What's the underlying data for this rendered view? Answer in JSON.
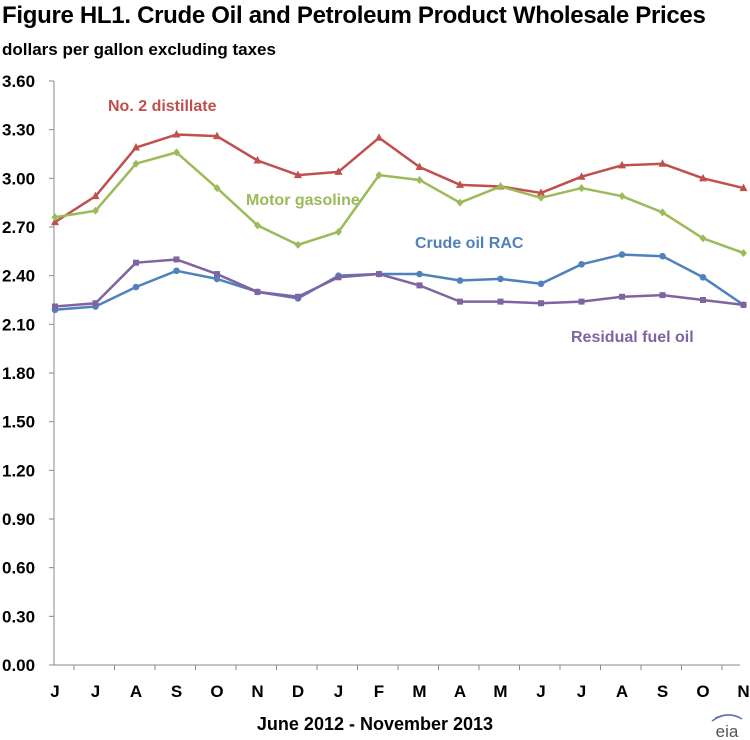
{
  "title": "Figure HL1. Crude Oil and Petroleum Product Wholesale Prices",
  "subtitle": "dollars per gallon excluding taxes",
  "logo_text": "eia",
  "chart_data": {
    "type": "line",
    "title": "Figure HL1. Crude Oil and Petroleum Product Wholesale Prices",
    "ylabel": "dollars per gallon excluding taxes",
    "xlabel": "June 2012 - November 2013",
    "ylim": [
      0,
      3.6
    ],
    "yticks": [
      "0.00",
      "0.30",
      "0.60",
      "0.90",
      "1.20",
      "1.50",
      "1.80",
      "2.10",
      "2.40",
      "2.70",
      "3.00",
      "3.30",
      "3.60"
    ],
    "categories": [
      "J",
      "J",
      "A",
      "S",
      "O",
      "N",
      "D",
      "J",
      "F",
      "M",
      "A",
      "M",
      "J",
      "J",
      "A",
      "S",
      "O",
      "N"
    ],
    "grid": false,
    "legend": "inline labels",
    "series": [
      {
        "name": "No. 2 distillate",
        "color": "#C0504D",
        "marker": "triangle",
        "values": [
          2.73,
          2.89,
          3.19,
          3.27,
          3.26,
          3.11,
          3.02,
          3.04,
          3.25,
          3.07,
          2.96,
          2.95,
          2.91,
          3.01,
          3.08,
          3.09,
          3.0,
          2.94
        ]
      },
      {
        "name": "Motor gasoline",
        "color": "#9BBB59",
        "marker": "diamond",
        "values": [
          2.76,
          2.8,
          3.09,
          3.16,
          2.94,
          2.71,
          2.59,
          2.67,
          3.02,
          2.99,
          2.85,
          2.95,
          2.88,
          2.94,
          2.89,
          2.79,
          2.63,
          2.54
        ]
      },
      {
        "name": "Crude oil RAC",
        "color": "#4F81BD",
        "marker": "circle",
        "values": [
          2.19,
          2.21,
          2.33,
          2.43,
          2.38,
          2.3,
          2.26,
          2.4,
          2.41,
          2.41,
          2.37,
          2.38,
          2.35,
          2.47,
          2.53,
          2.52,
          2.39,
          2.22
        ]
      },
      {
        "name": "Residual fuel oil",
        "color": "#8064A2",
        "marker": "square",
        "values": [
          2.21,
          2.23,
          2.48,
          2.5,
          2.41,
          2.3,
          2.27,
          2.39,
          2.41,
          2.34,
          2.24,
          2.24,
          2.23,
          2.24,
          2.27,
          2.28,
          2.25,
          2.22
        ]
      }
    ]
  }
}
